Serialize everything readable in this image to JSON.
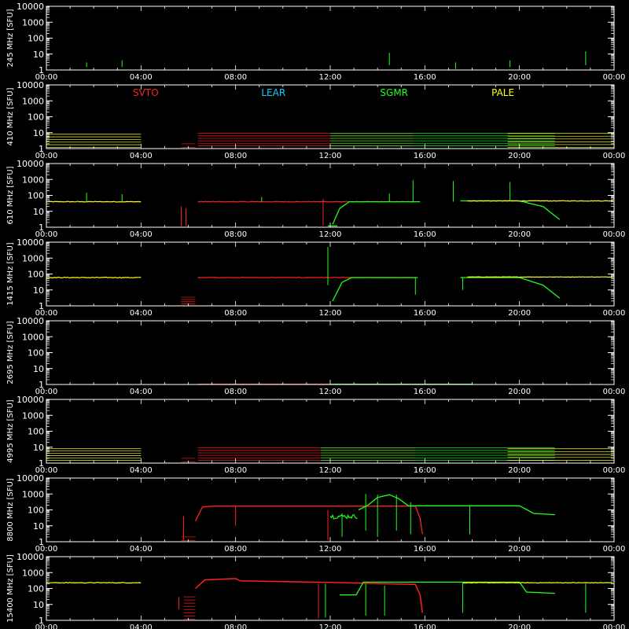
{
  "chart_data": {
    "type": "line",
    "x_ticks": [
      "00:00",
      "04:00",
      "08:00",
      "12:00",
      "16:00",
      "20:00",
      "00:00"
    ],
    "y_scale": "log",
    "y_ticks": [
      "10000",
      "1000",
      "100",
      "10",
      "1"
    ],
    "ylim": [
      1,
      10000
    ],
    "stations": [
      {
        "name": "SVTO",
        "color": "#ff2020"
      },
      {
        "name": "LEAR",
        "color": "#20c8ff"
      },
      {
        "name": "SGMR",
        "color": "#20ff20"
      },
      {
        "name": "PALE",
        "color": "#ffff20"
      }
    ],
    "panels": [
      {
        "ylabel": "245 MHz [SFU]"
      },
      {
        "ylabel": "410 MHz [SFU]"
      },
      {
        "ylabel": "610 MHz [SFU]"
      },
      {
        "ylabel": "1415 MHz [SFU]"
      },
      {
        "ylabel": "2695 MHz [SFU]"
      },
      {
        "ylabel": "4995 MHz [SFU]"
      },
      {
        "ylabel": "8800 MHz [SFU]"
      },
      {
        "ylabel": "15400 MHz [SFU]"
      }
    ]
  }
}
